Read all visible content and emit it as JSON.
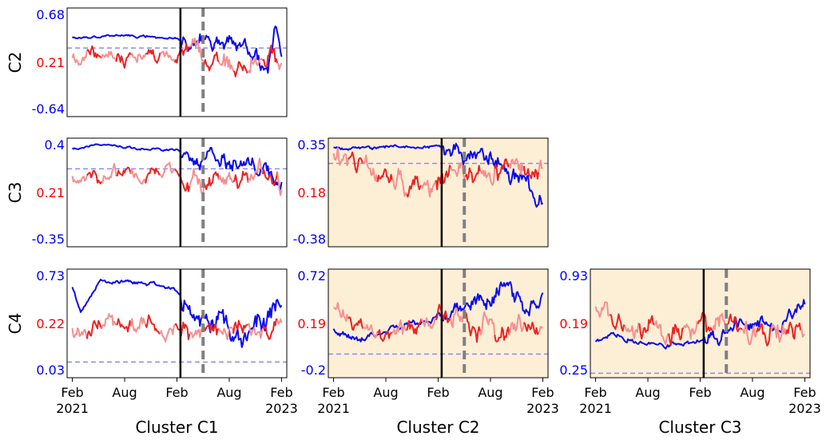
{
  "chart_data": {
    "type": "line",
    "title": "",
    "layout": "lower-triangular grid of small multiples (rows C2–C4, columns C1–C3)",
    "x_range": [
      "Feb 2021",
      "Feb 2023"
    ],
    "x_ticks": [
      {
        "label": "Feb",
        "year": "2021",
        "t": 0
      },
      {
        "label": "Aug",
        "year": "",
        "t": 6
      },
      {
        "label": "Feb",
        "year": "",
        "t": 12
      },
      {
        "label": "Aug",
        "year": "",
        "t": 18
      },
      {
        "label": "Feb",
        "year": "2023",
        "t": 24
      }
    ],
    "x_unit": "months since Feb 2021",
    "row_labels": [
      "C2",
      "C3",
      "C4"
    ],
    "column_labels": [
      "Cluster C1",
      "Cluster C2",
      "Cluster C3"
    ],
    "colors": {
      "series_blue": "#0a0aee",
      "series_red": "#ee2222",
      "series_red_light": "#f59090",
      "tick_blue": "#0000ff",
      "tick_red": "#ff0000",
      "dashed_hline": "#8c8cf0",
      "vline_solid": "#000000",
      "vline_dashed": "#808080",
      "highlight_bg": "#fdefd6"
    },
    "panels": [
      {
        "row": "C2",
        "column": "Cluster C1",
        "highlighted": false,
        "yticks": [
          {
            "label": "0.68",
            "color": "blue"
          },
          {
            "label": "0.21",
            "color": "red"
          },
          {
            "label": "-0.64",
            "color": "blue"
          }
        ],
        "ylim": [
          -0.8,
          0.8
        ],
        "hline": 0.21,
        "vline_solid": 12.4,
        "vline_dashed": 15.0,
        "series": [
          {
            "name": "blue",
            "seed": 11,
            "shape": [
              [
                0,
                0.36
              ],
              [
                6,
                0.4
              ],
              [
                12,
                0.35
              ],
              [
                14,
                0.3
              ],
              [
                17,
                0.32
              ],
              [
                19,
                0.28
              ],
              [
                21,
                0.1
              ],
              [
                22.5,
                -0.2
              ],
              [
                23.2,
                0.55
              ],
              [
                24,
                0.1
              ]
            ],
            "noise_early": 0.03,
            "noise_late": 0.22,
            "break": 12.4
          },
          {
            "name": "red",
            "seed": 21,
            "shape": [
              [
                0,
                0.05
              ],
              [
                3,
                0.15
              ],
              [
                6,
                0.05
              ],
              [
                9,
                0.1
              ],
              [
                12,
                0.0
              ],
              [
                13,
                0.25
              ],
              [
                15,
                0.15
              ],
              [
                18,
                -0.05
              ],
              [
                21,
                0.05
              ],
              [
                24,
                0.0
              ]
            ],
            "noise_early": 0.18,
            "noise_late": 0.28,
            "break": 12.4,
            "alt_light": true
          }
        ]
      },
      {
        "row": "C3",
        "column": "Cluster C1",
        "highlighted": false,
        "yticks": [
          {
            "label": "0.4",
            "color": "blue"
          },
          {
            "label": "0.21",
            "color": "red"
          },
          {
            "label": "-0.35",
            "color": "blue"
          }
        ],
        "ylim": [
          -0.4,
          0.45
        ],
        "hline": 0.21,
        "vline_solid": 12.4,
        "vline_dashed": 15.0,
        "series": [
          {
            "name": "blue",
            "seed": 12,
            "shape": [
              [
                0,
                0.37
              ],
              [
                3,
                0.4
              ],
              [
                6,
                0.38
              ],
              [
                9,
                0.36
              ],
              [
                12,
                0.36
              ],
              [
                14,
                0.3
              ],
              [
                17,
                0.28
              ],
              [
                20,
                0.22
              ],
              [
                22,
                0.18
              ],
              [
                24,
                0.05
              ]
            ],
            "noise_early": 0.015,
            "noise_late": 0.12,
            "break": 12.4
          },
          {
            "name": "red",
            "seed": 22,
            "shape": [
              [
                0,
                0.12
              ],
              [
                3,
                0.15
              ],
              [
                6,
                0.18
              ],
              [
                9,
                0.2
              ],
              [
                12,
                0.22
              ],
              [
                13,
                0.1
              ],
              [
                16,
                0.12
              ],
              [
                19,
                0.15
              ],
              [
                21,
                0.2
              ],
              [
                24,
                0.08
              ]
            ],
            "noise_early": 0.1,
            "noise_late": 0.14,
            "break": 12.4,
            "alt_light": true
          }
        ]
      },
      {
        "row": "C3",
        "column": "Cluster C2",
        "highlighted": true,
        "yticks": [
          {
            "label": "0.35",
            "color": "blue"
          },
          {
            "label": "0.18",
            "color": "red"
          },
          {
            "label": "-0.38",
            "color": "blue"
          }
        ],
        "ylim": [
          -0.38,
          0.35
        ],
        "hline": 0.18,
        "vline_solid": 12.4,
        "vline_dashed": 15.0,
        "series": [
          {
            "name": "blue",
            "seed": 13,
            "shape": [
              [
                0,
                0.28
              ],
              [
                6,
                0.29
              ],
              [
                12,
                0.29
              ],
              [
                14,
                0.3
              ],
              [
                16,
                0.22
              ],
              [
                18,
                0.2
              ],
              [
                20,
                0.14
              ],
              [
                22,
                0.1
              ],
              [
                24,
                -0.1
              ]
            ],
            "noise_early": 0.02,
            "noise_late": 0.12,
            "break": 12.4
          },
          {
            "name": "red",
            "seed": 23,
            "shape": [
              [
                0,
                0.25
              ],
              [
                3,
                0.18
              ],
              [
                6,
                0.1
              ],
              [
                9,
                0.05
              ],
              [
                12,
                0.05
              ],
              [
                14,
                0.12
              ],
              [
                17,
                0.1
              ],
              [
                20,
                0.15
              ],
              [
                24,
                0.15
              ]
            ],
            "noise_early": 0.13,
            "noise_late": 0.13,
            "break": 12.4,
            "alt_light": true
          }
        ]
      },
      {
        "row": "C4",
        "column": "Cluster C1",
        "highlighted": false,
        "yticks": [
          {
            "label": "0.73",
            "color": "blue"
          },
          {
            "label": "0.22",
            "color": "red"
          },
          {
            "label": "0.03",
            "color": "blue"
          }
        ],
        "ylim": [
          -0.1,
          0.8
        ],
        "hline": 0.03,
        "vline_solid": 12.4,
        "vline_dashed": 15.0,
        "series": [
          {
            "name": "blue",
            "seed": 14,
            "shape": [
              [
                0,
                0.65
              ],
              [
                1,
                0.45
              ],
              [
                3,
                0.7
              ],
              [
                6,
                0.7
              ],
              [
                9,
                0.68
              ],
              [
                12,
                0.62
              ],
              [
                14,
                0.45
              ],
              [
                17,
                0.35
              ],
              [
                20,
                0.28
              ],
              [
                22,
                0.35
              ],
              [
                24,
                0.55
              ]
            ],
            "noise_early": 0.03,
            "noise_late": 0.18,
            "break": 12.4
          },
          {
            "name": "red",
            "seed": 24,
            "shape": [
              [
                0,
                0.28
              ],
              [
                3,
                0.3
              ],
              [
                6,
                0.32
              ],
              [
                9,
                0.35
              ],
              [
                12,
                0.3
              ],
              [
                14,
                0.25
              ],
              [
                17,
                0.3
              ],
              [
                20,
                0.28
              ],
              [
                24,
                0.3
              ]
            ],
            "noise_early": 0.12,
            "noise_late": 0.15,
            "break": 12.4,
            "alt_light": true
          }
        ]
      },
      {
        "row": "C4",
        "column": "Cluster C2",
        "highlighted": true,
        "yticks": [
          {
            "label": "0.72",
            "color": "blue"
          },
          {
            "label": "0.19",
            "color": "red"
          },
          {
            "label": "-0.2",
            "color": "blue"
          }
        ],
        "ylim": [
          -0.35,
          0.8
        ],
        "hline": -0.1,
        "vline_solid": 12.4,
        "vline_dashed": 15.0,
        "series": [
          {
            "name": "blue",
            "seed": 15,
            "shape": [
              [
                0,
                0.15
              ],
              [
                3,
                0.05
              ],
              [
                6,
                0.15
              ],
              [
                9,
                0.22
              ],
              [
                12,
                0.3
              ],
              [
                14,
                0.4
              ],
              [
                17,
                0.5
              ],
              [
                20,
                0.55
              ],
              [
                22,
                0.45
              ],
              [
                24,
                0.4
              ]
            ],
            "noise_early": 0.06,
            "noise_late": 0.18,
            "break": 12.4
          },
          {
            "name": "red",
            "seed": 25,
            "shape": [
              [
                0,
                0.4
              ],
              [
                3,
                0.2
              ],
              [
                6,
                0.1
              ],
              [
                9,
                0.15
              ],
              [
                12,
                0.3
              ],
              [
                14,
                0.35
              ],
              [
                16,
                0.2
              ],
              [
                19,
                0.15
              ],
              [
                21,
                0.2
              ],
              [
                24,
                0.1
              ]
            ],
            "noise_early": 0.15,
            "noise_late": 0.2,
            "break": 12.4,
            "alt_light": true
          }
        ]
      },
      {
        "row": "C4",
        "column": "Cluster C3",
        "highlighted": true,
        "yticks": [
          {
            "label": "0.93",
            "color": "blue"
          },
          {
            "label": "0.19",
            "color": "red"
          },
          {
            "label": "0.25",
            "color": "blue"
          }
        ],
        "ylim": [
          -0.2,
          1.0
        ],
        "hline": -0.15,
        "vline_solid": 12.4,
        "vline_dashed": 15.0,
        "series": [
          {
            "name": "blue",
            "seed": 16,
            "shape": [
              [
                0,
                0.2
              ],
              [
                2,
                0.3
              ],
              [
                5,
                0.2
              ],
              [
                8,
                0.15
              ],
              [
                11,
                0.2
              ],
              [
                13,
                0.25
              ],
              [
                16,
                0.35
              ],
              [
                19,
                0.4
              ],
              [
                21,
                0.35
              ],
              [
                24,
                0.65
              ]
            ],
            "noise_early": 0.05,
            "noise_late": 0.15,
            "break": 12.4
          },
          {
            "name": "red",
            "seed": 26,
            "shape": [
              [
                0,
                0.55
              ],
              [
                3,
                0.4
              ],
              [
                6,
                0.35
              ],
              [
                9,
                0.3
              ],
              [
                12,
                0.35
              ],
              [
                14,
                0.4
              ],
              [
                17,
                0.3
              ],
              [
                20,
                0.25
              ],
              [
                22,
                0.35
              ],
              [
                24,
                0.25
              ]
            ],
            "noise_early": 0.2,
            "noise_late": 0.22,
            "break": 12.4,
            "alt_light": true
          }
        ]
      }
    ]
  }
}
